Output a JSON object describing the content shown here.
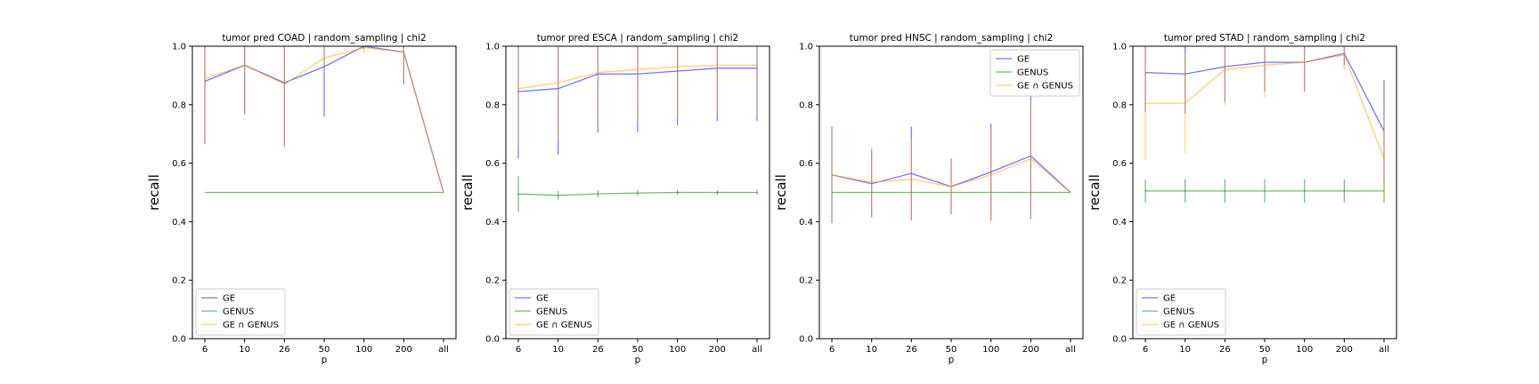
{
  "colors": {
    "GE": "#0000ff",
    "GENUS": "#008000",
    "GE ∩ GENUS": "#ffa500",
    "overlap": "#a8646a",
    "axes": "#000000"
  },
  "chart_data": [
    {
      "type": "line",
      "title": "tumor pred COAD | random_sampling | chi2",
      "xlabel": "p",
      "ylabel": "recall",
      "categories": [
        "6",
        "10",
        "26",
        "50",
        "100",
        "200",
        "all"
      ],
      "ylim": [
        0.0,
        1.0
      ],
      "yticks": [
        "0.0",
        "0.2",
        "0.4",
        "0.6",
        "0.8",
        "1.0"
      ],
      "grid": false,
      "legend": "lower-left",
      "series": [
        {
          "name": "GE",
          "values": [
            0.88,
            0.935,
            0.875,
            0.93,
            1.0,
            0.98,
            0.5
          ],
          "err": [
            0.215,
            0.165,
            0.22,
            0.17,
            0.01,
            0.11,
            0.0
          ]
        },
        {
          "name": "GENUS",
          "values": [
            0.5,
            0.5,
            0.5,
            0.5,
            0.5,
            0.5,
            0.5
          ],
          "err": [
            0,
            0,
            0,
            0,
            0,
            0,
            0
          ]
        },
        {
          "name": "GE ∩ GENUS",
          "values": [
            0.89,
            0.935,
            0.87,
            0.96,
            0.995,
            0.98,
            0.5
          ],
          "err": [
            0.22,
            0.17,
            0.215,
            0.04,
            0.02,
            0.1,
            0.0
          ]
        }
      ]
    },
    {
      "type": "line",
      "title": "tumor pred ESCA | random_sampling | chi2",
      "xlabel": "p",
      "ylabel": "recall",
      "categories": [
        "6",
        "10",
        "26",
        "50",
        "100",
        "200",
        "all"
      ],
      "ylim": [
        0.0,
        1.0
      ],
      "yticks": [
        "0.0",
        "0.2",
        "0.4",
        "0.6",
        "0.8",
        "1.0"
      ],
      "grid": false,
      "legend": "lower-left",
      "series": [
        {
          "name": "GE",
          "values": [
            0.845,
            0.855,
            0.905,
            0.905,
            0.915,
            0.925,
            0.925
          ],
          "err": [
            0.23,
            0.225,
            0.2,
            0.2,
            0.185,
            0.18,
            0.18
          ]
        },
        {
          "name": "GENUS",
          "values": [
            0.495,
            0.49,
            0.495,
            0.498,
            0.5,
            0.5,
            0.5
          ],
          "err": [
            0.06,
            0.015,
            0.012,
            0.01,
            0.008,
            0.008,
            0.008
          ]
        },
        {
          "name": "GE ∩ GENUS",
          "values": [
            0.855,
            0.875,
            0.91,
            0.92,
            0.93,
            0.935,
            0.935
          ],
          "err": [
            0.2,
            0.195,
            0.19,
            0.18,
            0.175,
            0.17,
            0.17
          ]
        }
      ]
    },
    {
      "type": "line",
      "title": "tumor pred HNSC | random_sampling | chi2",
      "xlabel": "p",
      "ylabel": "recall",
      "categories": [
        "6",
        "10",
        "26",
        "50",
        "100",
        "200",
        "all"
      ],
      "ylim": [
        0.0,
        1.0
      ],
      "yticks": [
        "0.0",
        "0.2",
        "0.4",
        "0.6",
        "0.8",
        "1.0"
      ],
      "grid": false,
      "legend": "upper-right",
      "series": [
        {
          "name": "GE",
          "values": [
            0.56,
            0.53,
            0.565,
            0.52,
            0.57,
            0.625,
            0.5
          ],
          "err": [
            0.165,
            0.115,
            0.16,
            0.095,
            0.165,
            0.215,
            0.0
          ]
        },
        {
          "name": "GENUS",
          "values": [
            0.5,
            0.5,
            0.5,
            0.5,
            0.5,
            0.5,
            0.5
          ],
          "err": [
            0,
            0,
            0,
            0,
            0,
            0,
            0
          ]
        },
        {
          "name": "GE ∩ GENUS",
          "values": [
            0.56,
            0.535,
            0.545,
            0.52,
            0.56,
            0.615,
            0.5
          ],
          "err": [
            0.16,
            0.12,
            0.14,
            0.09,
            0.16,
            0.2,
            0.0
          ]
        }
      ]
    },
    {
      "type": "line",
      "title": "tumor pred STAD | random_sampling | chi2",
      "xlabel": "p",
      "ylabel": "recall",
      "categories": [
        "6",
        "10",
        "26",
        "50",
        "100",
        "200",
        "all"
      ],
      "ylim": [
        0.0,
        1.0
      ],
      "yticks": [
        "0.0",
        "0.2",
        "0.4",
        "0.6",
        "0.8",
        "1.0"
      ],
      "grid": false,
      "legend": "lower-left",
      "series": [
        {
          "name": "GE",
          "values": [
            0.91,
            0.905,
            0.93,
            0.945,
            0.945,
            0.975,
            0.71
          ],
          "err": [
            0.135,
            0.135,
            0.12,
            0.1,
            0.1,
            0.04,
            0.175
          ]
        },
        {
          "name": "GENUS",
          "values": [
            0.505,
            0.505,
            0.505,
            0.505,
            0.505,
            0.505,
            0.505
          ],
          "err": [
            0.04,
            0.04,
            0.04,
            0.04,
            0.04,
            0.04,
            0.04
          ]
        },
        {
          "name": "GE ∩ GENUS",
          "values": [
            0.805,
            0.805,
            0.92,
            0.935,
            0.945,
            0.97,
            0.615
          ],
          "err": [
            0.195,
            0.17,
            0.12,
            0.11,
            0.1,
            0.05,
            0.15
          ]
        }
      ]
    }
  ]
}
